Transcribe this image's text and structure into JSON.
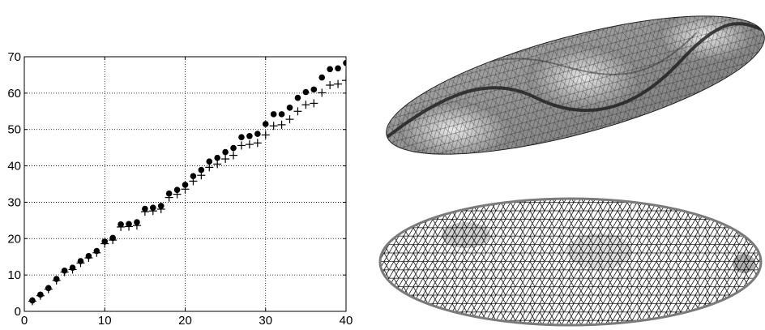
{
  "chart_data": {
    "type": "scatter",
    "title": "",
    "xlabel": "",
    "ylabel": "",
    "xlim": [
      0,
      40
    ],
    "ylim": [
      0,
      70
    ],
    "xticks": [
      0,
      10,
      20,
      30,
      40
    ],
    "yticks": [
      0,
      10,
      20,
      30,
      40,
      50,
      60,
      70
    ],
    "x_tick_labels": [
      "0",
      "10",
      "20",
      "30",
      "40"
    ],
    "y_tick_labels": [
      "0",
      "10",
      "20",
      "30",
      "40",
      "50",
      "60",
      "70"
    ],
    "grid": true,
    "legend": "none",
    "x": [
      1,
      2,
      3,
      4,
      5,
      6,
      7,
      8,
      9,
      10,
      11,
      12,
      13,
      14,
      15,
      16,
      17,
      18,
      19,
      20,
      21,
      22,
      23,
      24,
      25,
      26,
      27,
      28,
      29,
      30,
      31,
      32,
      33,
      34,
      35,
      36,
      37,
      38,
      39,
      40
    ],
    "series": [
      {
        "marker": "dot",
        "color": "#000000",
        "values": [
          3.0,
          4.6,
          6.4,
          8.9,
          11.2,
          12.0,
          13.8,
          15.2,
          16.6,
          19.2,
          20.2,
          23.9,
          24.0,
          24.5,
          28.2,
          28.5,
          29.0,
          32.4,
          33.4,
          34.8,
          37.2,
          38.9,
          41.2,
          42.2,
          43.8,
          44.9,
          47.9,
          48.2,
          48.8,
          51.5,
          54.2,
          54.2,
          56.0,
          58.7,
          60.3,
          61.0,
          64.3,
          66.6,
          66.8,
          68.3
        ]
      },
      {
        "marker": "plus",
        "color": "#000000",
        "values": [
          2.8,
          4.3,
          6.1,
          8.5,
          10.8,
          11.5,
          13.3,
          14.7,
          16.1,
          18.6,
          19.6,
          23.2,
          23.3,
          23.6,
          27.4,
          27.6,
          28.1,
          31.3,
          32.2,
          33.6,
          35.8,
          37.4,
          39.6,
          40.5,
          41.9,
          42.9,
          45.6,
          45.9,
          46.3,
          48.5,
          51.0,
          51.3,
          52.8,
          55.0,
          56.8,
          57.2,
          60.1,
          62.2,
          62.5,
          63.5
        ]
      }
    ]
  },
  "figures": {
    "surface_colors": {
      "dark": "#4a4a4a",
      "light": "#f2f2f2",
      "edge": "#222222"
    },
    "mesh_colors": {
      "edge": "#111111",
      "boundary": "#7a7a7a",
      "fill": "#ffffff"
    }
  }
}
